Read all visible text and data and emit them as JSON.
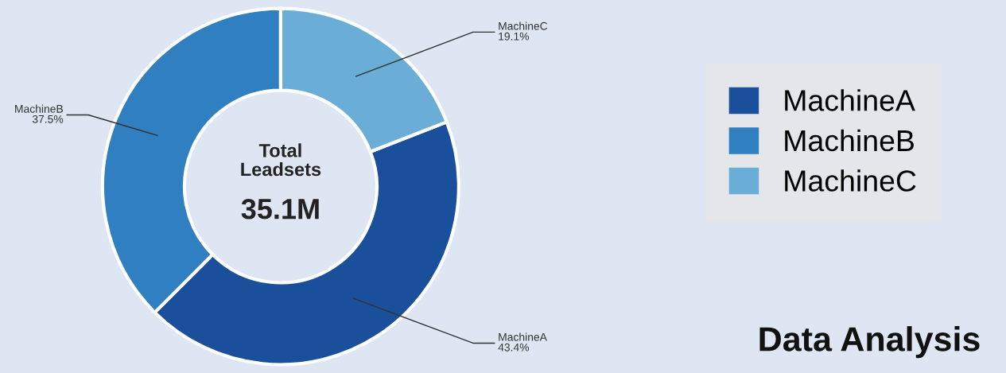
{
  "chart_data": {
    "type": "donut",
    "title": "Data Analysis",
    "categories": [
      "MachineA",
      "MachineB",
      "MachineC"
    ],
    "values": [
      43.4,
      37.5,
      19.1
    ],
    "colors": [
      "#1a4f9c",
      "#2f7fc1",
      "#6aaed8"
    ],
    "value_labels": [
      "43.4%",
      "37.5%",
      "19.1%"
    ],
    "legend": "right",
    "annotations": [
      "Total\nLeadsets",
      "35.1M"
    ]
  }
}
